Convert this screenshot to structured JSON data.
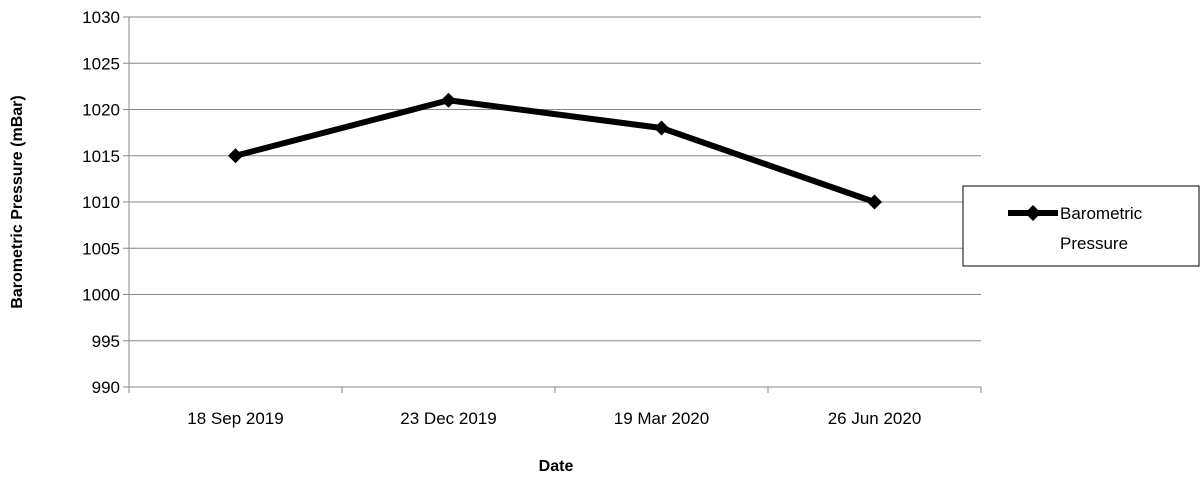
{
  "chart_data": {
    "type": "line",
    "title": "",
    "xlabel": "Date",
    "ylabel": "Barometric Pressure (mBar)",
    "ylim": [
      990,
      1030
    ],
    "yticks": [
      990,
      995,
      1000,
      1005,
      1010,
      1015,
      1020,
      1025,
      1030
    ],
    "categories": [
      "18 Sep 2019",
      "23 Dec 2019",
      "19 Mar 2020",
      "26 Jun 2020"
    ],
    "series": [
      {
        "name": "Barometric Pressure",
        "values": [
          1015,
          1021,
          1018,
          1010
        ],
        "color": "#000000",
        "marker": "diamond"
      }
    ],
    "grid": "horizontal",
    "legend": {
      "position": "right",
      "lines": [
        "Barometric",
        "Pressure"
      ]
    }
  }
}
